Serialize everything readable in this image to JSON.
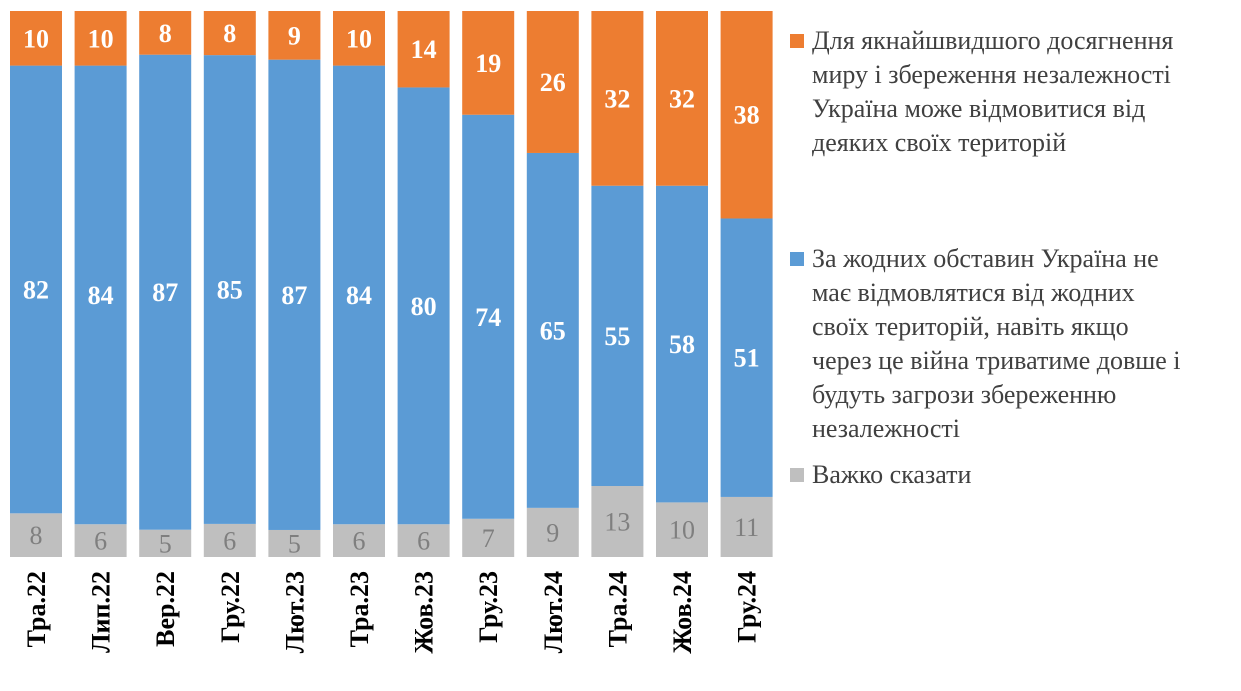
{
  "chart_data": {
    "type": "bar",
    "stacked": true,
    "categories": [
      "Тра.22",
      "Лип.22",
      "Вер.22",
      "Гру.22",
      "Лют.23",
      "Тра.23",
      "Жов.23",
      "Гру.23",
      "Лют.24",
      "Тра.24",
      "Жов.24",
      "Гру.24"
    ],
    "series": [
      {
        "name": "Важко сказати",
        "color": "#BFBFBF",
        "label_color": "#7F7F7F",
        "values": [
          8,
          6,
          5,
          6,
          5,
          6,
          6,
          7,
          9,
          13,
          10,
          11
        ]
      },
      {
        "name": "За жодних обставин Україна не має відмовлятися від жодних своїх територій, навіть якщо через це війна триватиме довше і будуть загрози збереженню незалежності",
        "color": "#5B9BD5",
        "label_color": "#FFFFFF",
        "values": [
          82,
          84,
          87,
          85,
          87,
          84,
          80,
          74,
          65,
          55,
          58,
          51
        ]
      },
      {
        "name": "Для якнайшвидшого досягнення миру і збереження незалежності Україна може відмовитися від деяких своїх територій",
        "color": "#ED7D31",
        "label_color": "#FFFFFF",
        "values": [
          10,
          10,
          8,
          8,
          9,
          10,
          14,
          19,
          26,
          32,
          32,
          38
        ]
      }
    ],
    "ylim": [
      0,
      100
    ],
    "grid": false,
    "legend_position": "right",
    "legend": [
      {
        "lines": [
          "Для якнайшвидшого досягнення",
          "миру і збереження незалежності",
          "Україна може відмовитися від",
          "деяких своїх територій"
        ],
        "color": "#ED7D31"
      },
      {
        "lines": [
          "За жодних обставин Україна не",
          "має відмовлятися від жодних",
          "своїх територій, навіть якщо",
          "через це війна триватиме довше і",
          "будуть загрози збереженню",
          "незалежності"
        ],
        "color": "#5B9BD5"
      },
      {
        "lines": [
          "Важко сказати"
        ],
        "color": "#BFBFBF"
      }
    ]
  }
}
